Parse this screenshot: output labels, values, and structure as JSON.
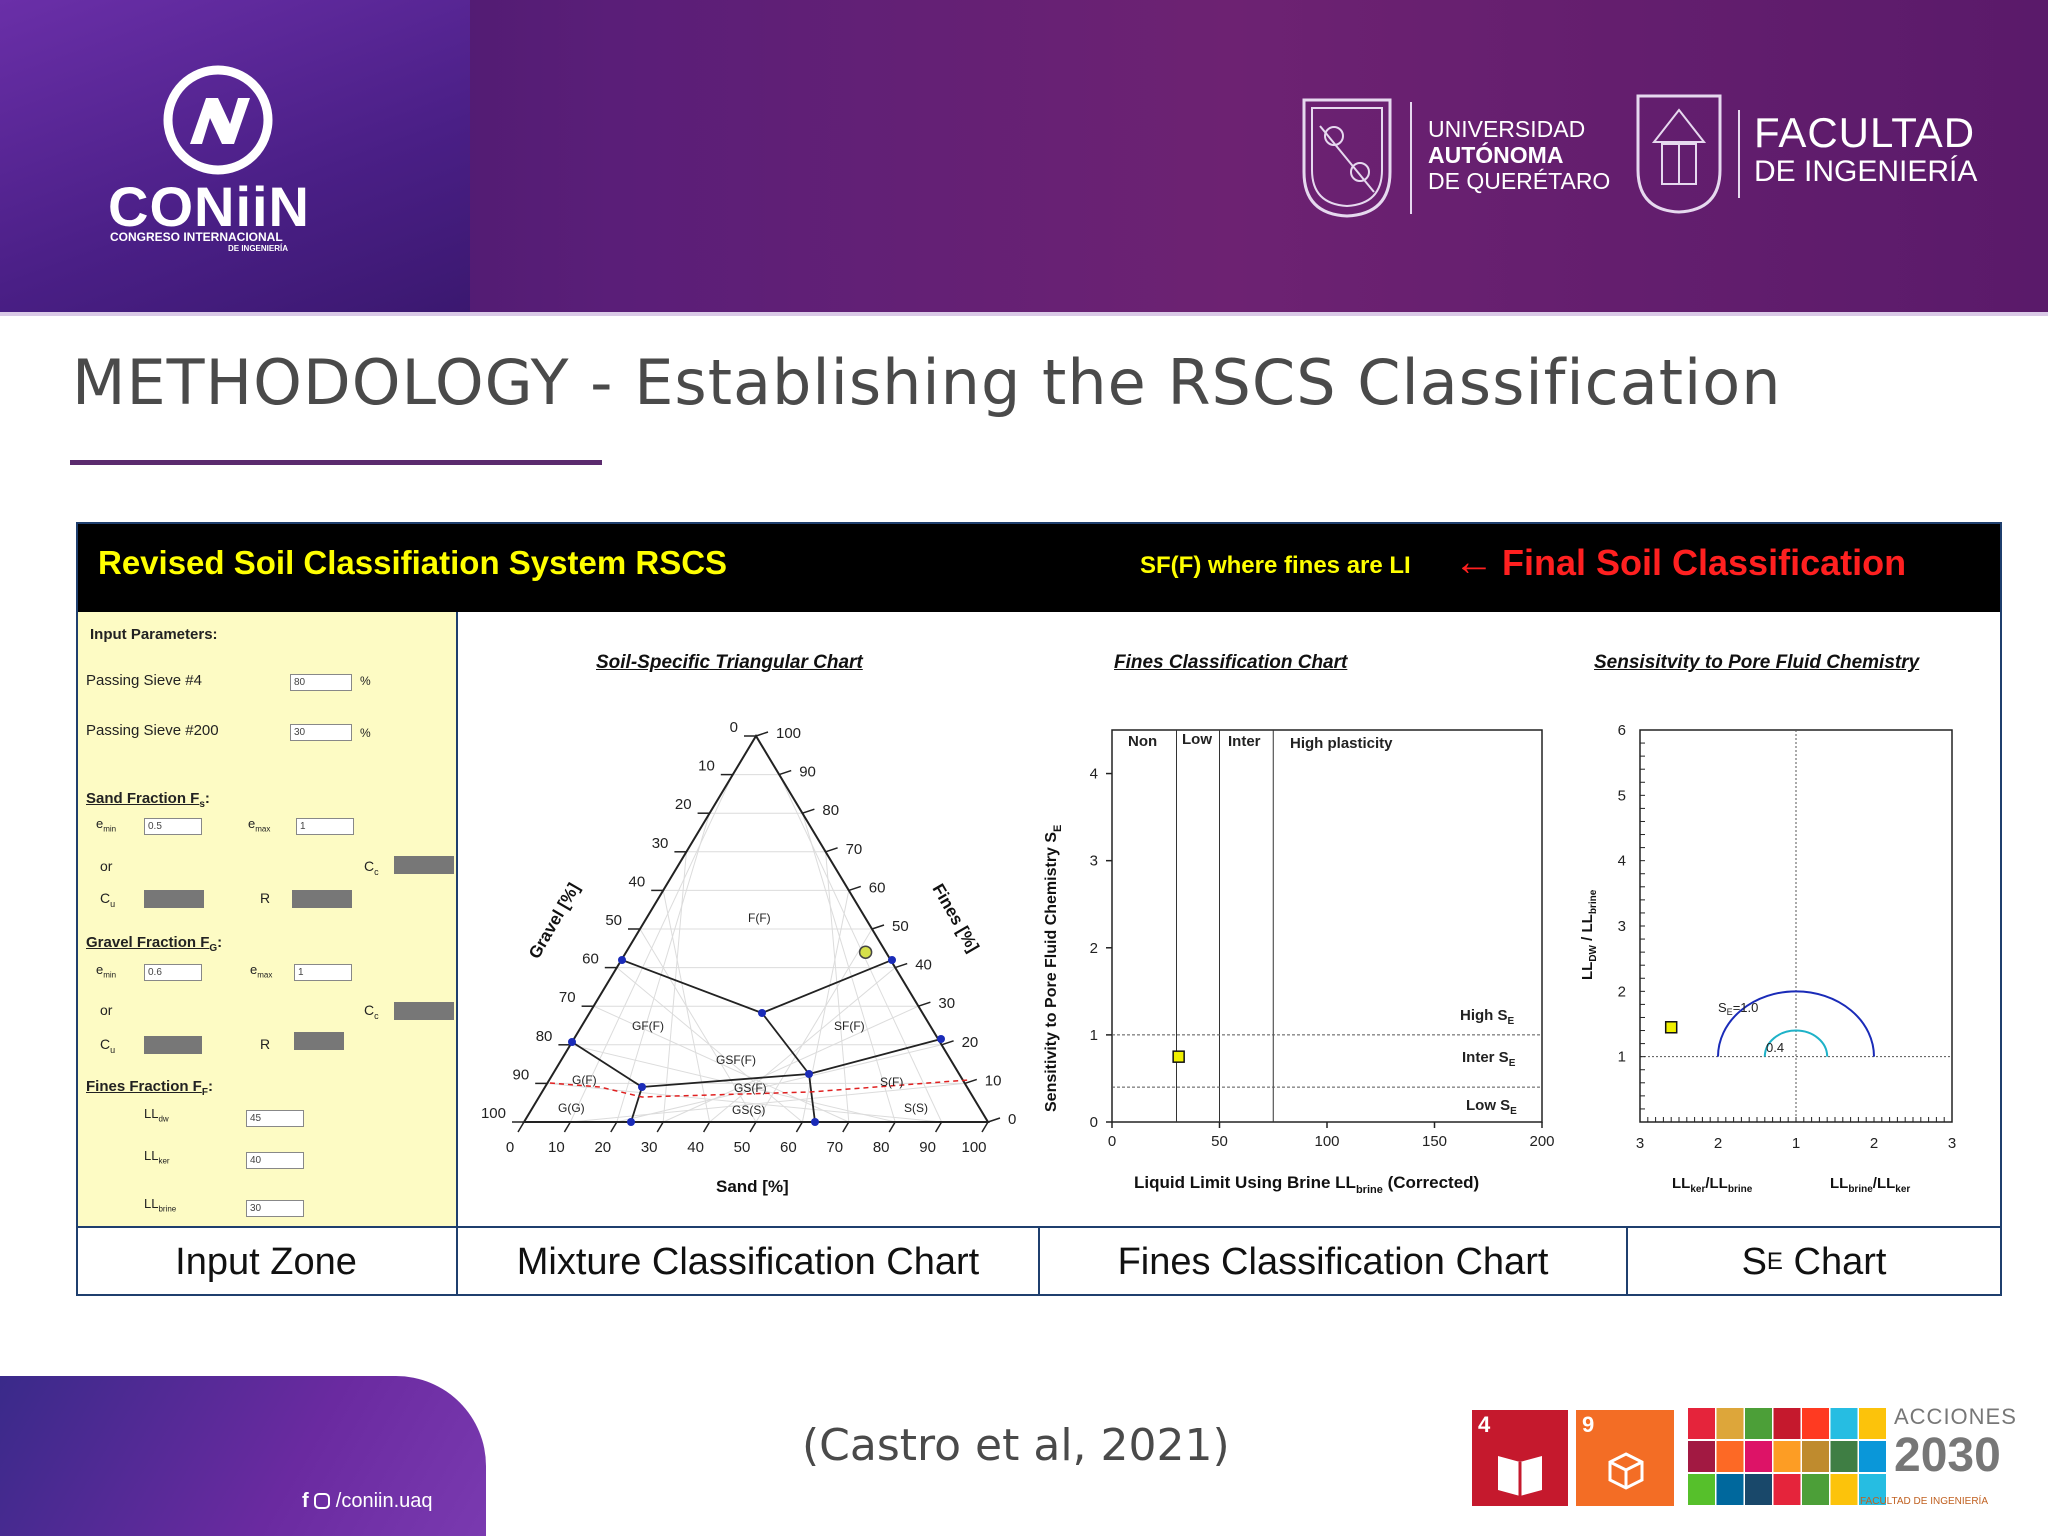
{
  "header": {
    "coniin_name": "CONiiN",
    "coniin_sub1": "CONGRESO INTERNACIONAL",
    "coniin_sub2": "DE INGENIERÍA",
    "uaq_line1": "UNIVERSIDAD",
    "uaq_line2": "AUTÓNOMA",
    "uaq_line3": "DE QUERÉTARO",
    "fi_line1": "FACULTAD",
    "fi_line2": "DE INGENIERÍA"
  },
  "page_title": "METHODOLOGY - Establishing the RSCS Classification",
  "tool": {
    "title": "Revised Soil Classifiation System RSCS",
    "result_text": "SF(F) where fines are LI",
    "final_label": "Final Soil Classification",
    "colors": {
      "title": "#ffff00",
      "final": "#ff2020",
      "frame": "#1f3f6e"
    }
  },
  "inputs": {
    "heading": "Input Parameters:",
    "sieve4_label": "Passing Sieve #4",
    "sieve4_value": "80",
    "sieve200_label": "Passing Sieve #200",
    "sieve200_value": "30",
    "percent": "%",
    "sand_heading": "Sand Fraction F",
    "sand_sub": "s",
    "sand_emin": "0.5",
    "sand_emax": "1",
    "gravel_heading": "Gravel Fraction F",
    "gravel_sub": "G",
    "gravel_emin": "0.6",
    "gravel_emax": "1",
    "fines_heading": "Fines Fraction F",
    "fines_sub": "F",
    "lldw_value": "45",
    "llker_value": "40",
    "llbrine_value": "30",
    "or": "or",
    "e": "e",
    "min": "min",
    "max": "max",
    "C": "C",
    "u": "u",
    "c": "c",
    "R": "R",
    "LL": "LL",
    "dw": "dw",
    "ker": "ker",
    "brine": "brine"
  },
  "triangular": {
    "title": "Soil-Specific Triangular Chart",
    "x_label": "Sand [%]",
    "left_label": "Gravel [%]",
    "right_label": "Fines [%]",
    "ticks_bottom": [
      "0",
      "10",
      "20",
      "30",
      "40",
      "50",
      "60",
      "70",
      "80",
      "90",
      "100"
    ],
    "ticks_left": [
      "0",
      "10",
      "20",
      "30",
      "40",
      "50",
      "60",
      "70",
      "80",
      "90",
      "100"
    ],
    "ticks_right": [
      "100",
      "90",
      "80",
      "70",
      "60",
      "50",
      "40",
      "30",
      "20",
      "10",
      "0"
    ],
    "regions": [
      "F(F)",
      "GF(F)",
      "SF(F)",
      "GSF(F)",
      "G(F)",
      "S(F)",
      "GS(F)",
      "GS(S)",
      "G(G)",
      "S(S)"
    ],
    "point": {
      "gravel": 20,
      "sand": 50,
      "fines": 30
    }
  },
  "fines_chart": {
    "title": "Fines Classification Chart",
    "x_label_pre": "Liquid Limit Using Brine LL",
    "x_label_sub": "brine",
    "x_label_post": " (Corrected)",
    "y_label_pre": "Sensitivity to Pore Fluid Chemistry S",
    "y_label_sub": "E",
    "x_ticks": [
      "0",
      "50",
      "100",
      "150",
      "200"
    ],
    "y_ticks": [
      "0",
      "1",
      "2",
      "3",
      "4"
    ],
    "zones": [
      "Non",
      "Low",
      "Inter",
      "High plasticity"
    ],
    "bands": [
      "High S",
      "Inter S",
      "Low S"
    ],
    "band_sub": "E",
    "point": {
      "x": 31,
      "y": 0.75
    }
  },
  "se_chart": {
    "title": "Sensisitvity to Pore Fluid Chemistry",
    "y_label_pre": "LL",
    "y_label_mid": "DW",
    "y_label_post": " / LL",
    "y_label_sub": "brine",
    "x_ticks": [
      "3",
      "2",
      "1",
      "2",
      "3"
    ],
    "y_ticks": [
      "1",
      "2",
      "3",
      "4",
      "5",
      "6"
    ],
    "left_label_a": "LL",
    "left_label_sub_a": "ker",
    "left_label_b": "/LL",
    "left_label_sub_b": "brine",
    "right_label_a": "LL",
    "right_label_sub_a": "brine",
    "right_label_b": "/LL",
    "right_label_sub_b": "ker",
    "se_outer": "=1.0",
    "se_inner": "0.4",
    "S": "S",
    "E": "E",
    "point": {
      "x": 2.6,
      "y": 1.45
    }
  },
  "captions": {
    "input": "Input Zone",
    "mixture": "Mixture Classification Chart",
    "fines": "Fines Classification Chart",
    "se_a": "S",
    "se_sub": "E",
    "se_b": " Chart"
  },
  "citation": "(Castro et al, 2021)",
  "footer": {
    "social": "/coniin.uaq",
    "acciones": "ACCIONES",
    "year": "2030",
    "faculty_small": "FACULTAD DE INGENIERÍA",
    "sdg4": "4",
    "sdg9": "9"
  }
}
